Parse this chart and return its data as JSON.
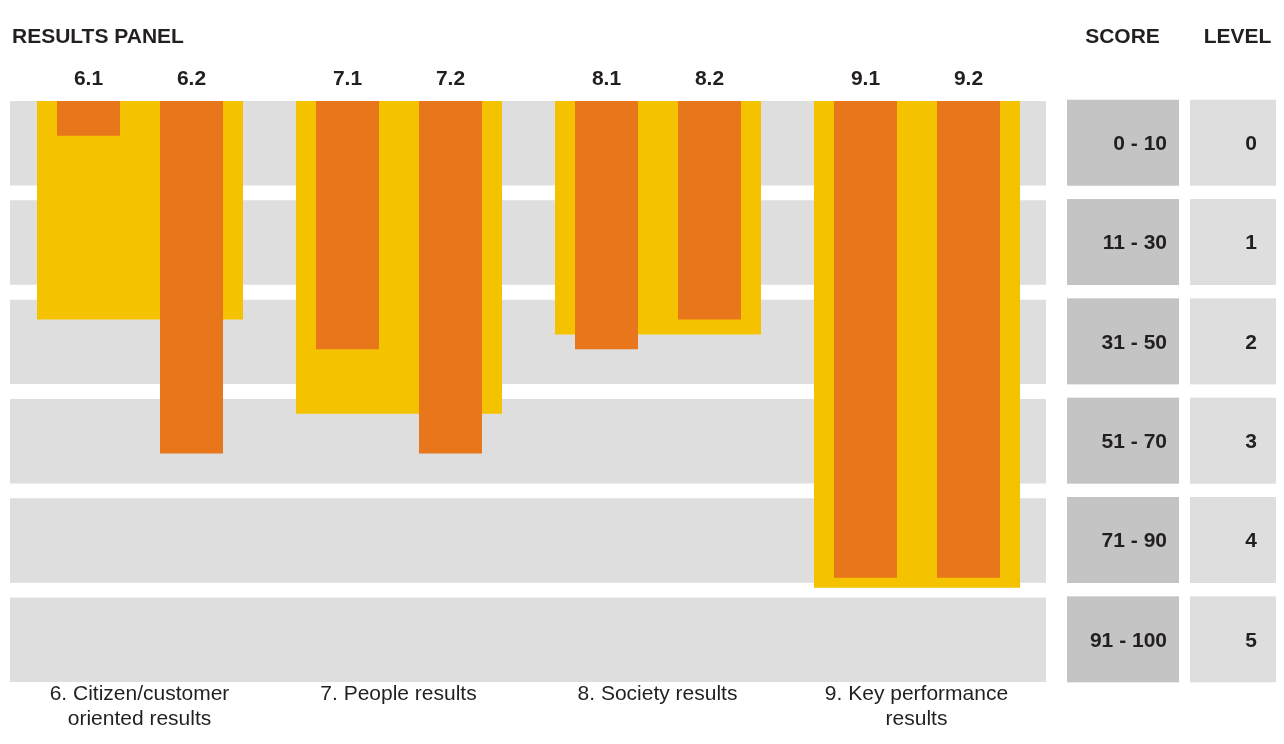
{
  "chart_data": {
    "type": "bar",
    "title": "RESULTS PANEL",
    "ylabel": "LEVEL",
    "categories": [
      "6. Citizen/customer oriented results",
      "7. People results",
      "8. Society results",
      "9. Key performance results"
    ],
    "series": [
      {
        "color": "#f5c200",
        "values": [
          2.2,
          3.15,
          2.35,
          4.9
        ],
        "base": [
          -0.42,
          -0.42,
          -0.42,
          -0.42
        ]
      },
      {
        "color": "#e8761a",
        "values": [
          0.35,
          2.5,
          2.5,
          4.8
        ],
        "base": [
          -0.42,
          -0.42,
          -0.42,
          -0.42
        ]
      },
      {
        "color": "#e8761a",
        "values": [
          3.55,
          3.55,
          2.2,
          4.8
        ],
        "base": [
          -0.42,
          -0.42,
          -0.42,
          -0.42
        ]
      }
    ],
    "annotations": [
      {
        "text": "6.1",
        "x": "6. Citizen/customer oriented results",
        "y": -0.42
      },
      {
        "text": "6.2",
        "x": "6. Citizen/customer oriented results",
        "y": -0.42
      },
      {
        "text": "7.1",
        "x": "7. People results",
        "y": -0.42
      },
      {
        "text": "7.2",
        "x": "7. People results",
        "y": -0.42
      },
      {
        "text": "8.1",
        "x": "8. Society results",
        "y": -0.42
      },
      {
        "text": "8.2",
        "x": "8. Society results",
        "y": -0.42
      },
      {
        "text": "9.1",
        "x": "9. Key performance results",
        "y": -0.42
      },
      {
        "text": "9.2",
        "x": "9. Key performance results",
        "y": -0.42
      },
      "SCORE",
      "0 - 10",
      "11 - 30",
      "31 - 50",
      "51 - 70",
      "71 - 90",
      "91 - 100"
    ],
    "ylim": [
      5.5,
      -0.42
    ],
    "yticks": [
      0,
      1,
      2,
      3,
      4,
      5
    ],
    "bands": [
      {
        "axis": "y",
        "from": -0.42,
        "to": 0.43,
        "color": "#dedede"
      },
      {
        "axis": "y",
        "from": 0.58,
        "to": 1.43,
        "color": "#dedede"
      },
      {
        "axis": "y",
        "from": 1.58,
        "to": 2.43,
        "color": "#dedede"
      },
      {
        "axis": "y",
        "from": 2.58,
        "to": 3.43,
        "color": "#dedede"
      },
      {
        "axis": "y",
        "from": 3.58,
        "to": 4.43,
        "color": "#dedede"
      },
      {
        "axis": "y",
        "from": 4.58,
        "to": 5.43,
        "color": "#dedede"
      }
    ]
  }
}
